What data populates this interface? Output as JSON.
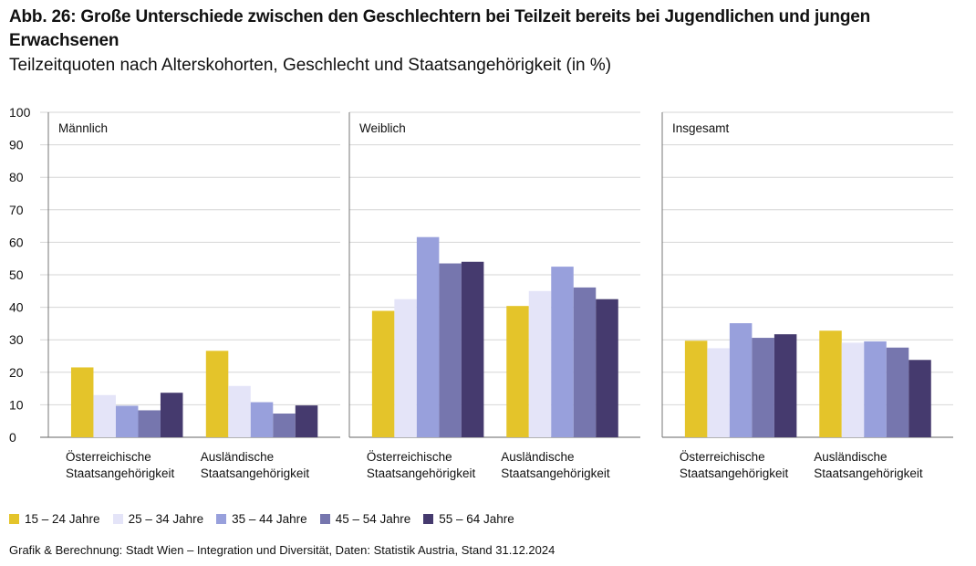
{
  "title": "Abb. 26: Große Unterschiede zwischen den Geschlechtern bei Teilzeit bereits bei Jugendlichen und jungen Erwachsenen",
  "subtitle": "Teilzeitquoten nach Alterskohorten, Geschlecht und Staatsangehörigkeit (in %)",
  "source": "Grafik & Berechnung: Stadt Wien – Integration und Diversität, Daten: Statistik Austria, Stand 31.12.2024",
  "chart_data": {
    "type": "bar",
    "ylim": [
      0,
      100
    ],
    "yticks": [
      "0",
      "10",
      "20",
      "30",
      "40",
      "50",
      "60",
      "70",
      "80",
      "90",
      "100"
    ],
    "grid": true,
    "legend_placement": "bottom-left",
    "categories": [
      "Österreichische Staatsangehörigkeit",
      "Ausländische Staatsangehörigkeit"
    ],
    "category_lines": [
      [
        "Österreichische",
        "Staatsangehörigkeit"
      ],
      [
        "Ausländische",
        "Staatsangehörigkeit"
      ]
    ],
    "series_names": [
      "15 – 24 Jahre",
      "25 – 34 Jahre",
      "35 – 44 Jahre",
      "45 – 54 Jahre",
      "55 – 64 Jahre"
    ],
    "colors": [
      "#e4c42a",
      "#e4e4f8",
      "#98a0dc",
      "#7676ae",
      "#453a6e"
    ],
    "panels": [
      {
        "label": "Männlich",
        "values": [
          [
            21.5,
            13.0,
            9.7,
            8.3,
            13.7
          ],
          [
            26.6,
            15.8,
            10.8,
            7.3,
            9.8
          ]
        ]
      },
      {
        "label": "Weiblich",
        "values": [
          [
            38.9,
            42.5,
            61.6,
            53.5,
            54.0
          ],
          [
            40.4,
            45.0,
            52.5,
            46.1,
            42.5
          ]
        ]
      },
      {
        "label": "Insgesamt",
        "values": [
          [
            29.7,
            27.4,
            35.1,
            30.6,
            31.7
          ],
          [
            32.8,
            29.1,
            29.5,
            27.6,
            23.8
          ]
        ]
      }
    ]
  }
}
